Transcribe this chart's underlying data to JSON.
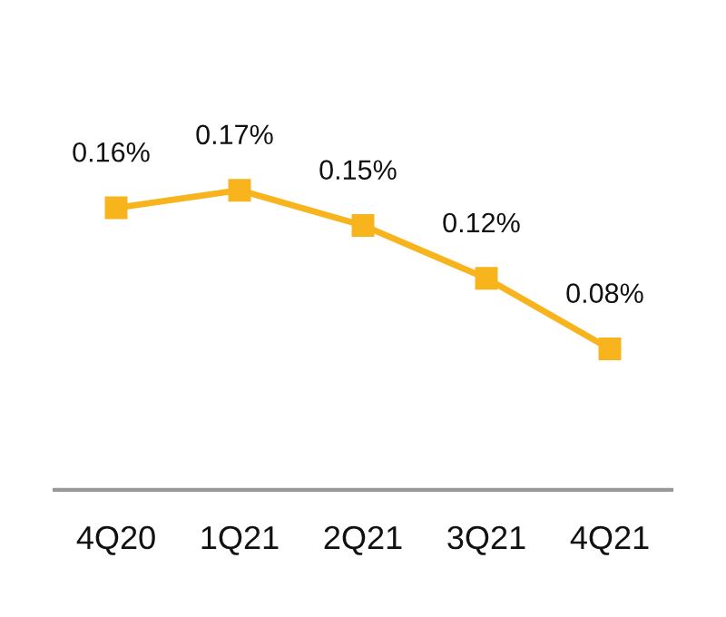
{
  "chart_data": {
    "type": "line",
    "categories": [
      "4Q20",
      "1Q21",
      "2Q21",
      "3Q21",
      "4Q21"
    ],
    "series": [
      {
        "color": "#f8b41c",
        "values": [
          0.16,
          0.17,
          0.15,
          0.12,
          0.08
        ],
        "value_labels": [
          "0.16%",
          "0.17%",
          "0.15%",
          "0.12%",
          "0.08%"
        ]
      }
    ],
    "marker": "square",
    "line_style": "solid",
    "grid": false,
    "legend": false,
    "tick_labels": "x"
  }
}
